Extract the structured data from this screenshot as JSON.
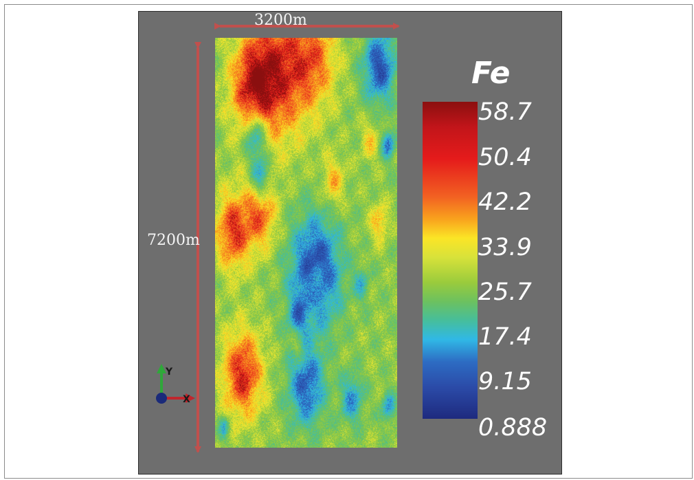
{
  "dimensions": {
    "width_label": "3200m",
    "height_label": "7200m",
    "arrow_color": "#c0504d"
  },
  "legend": {
    "title": "Fe",
    "ticks": [
      "58.7",
      "50.4",
      "42.2",
      "33.9",
      "25.7",
      "17.4",
      "9.15",
      "0.888"
    ]
  },
  "axes": {
    "y_label": "Y",
    "x_label": "X"
  },
  "colors": {
    "background": "#6e6e6e",
    "high": "#c2151a",
    "mid": "#fbe526",
    "low": "#1e2a7e"
  }
}
